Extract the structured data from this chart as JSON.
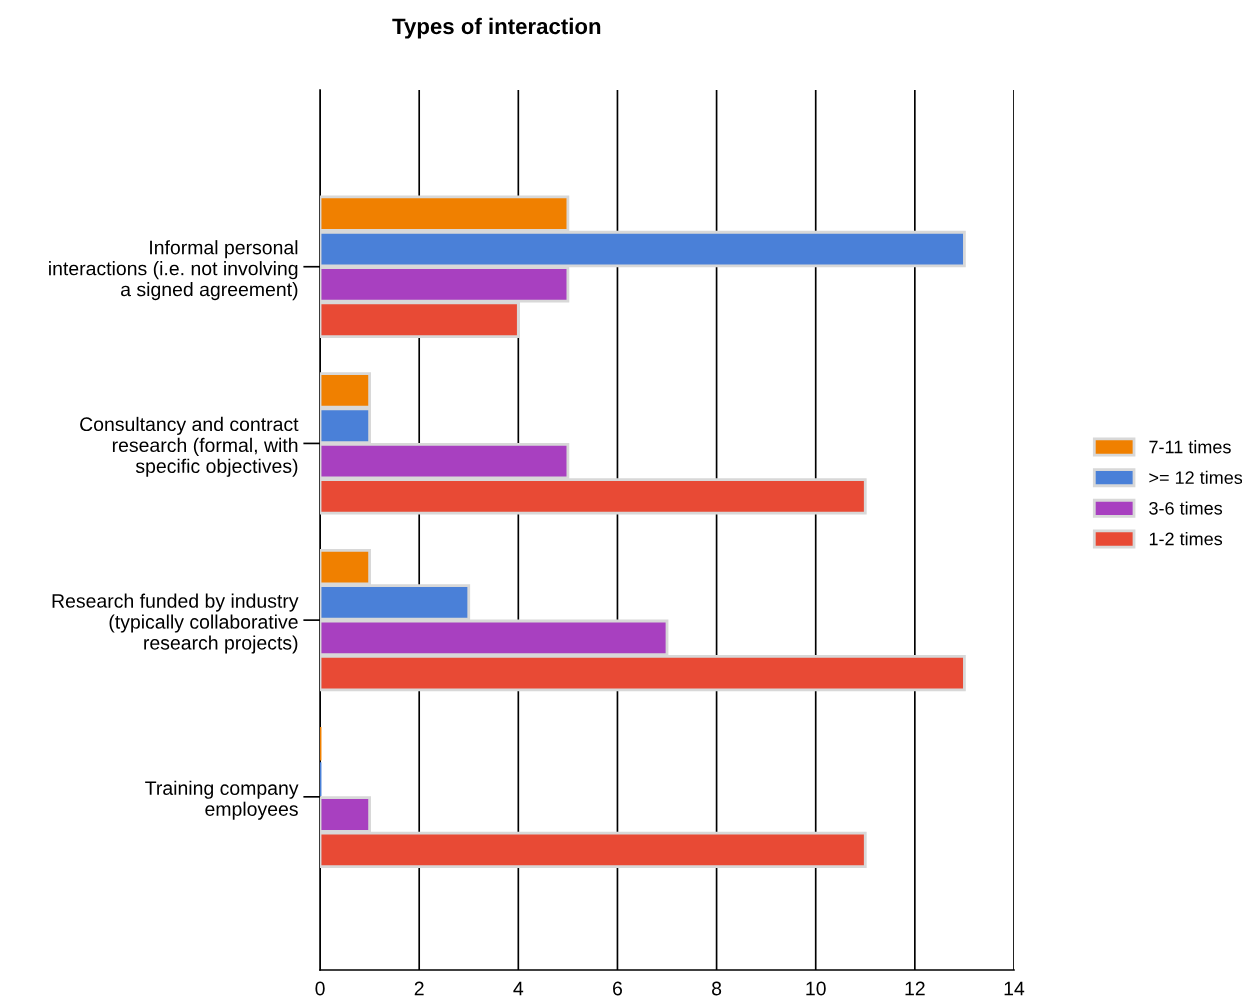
{
  "chart_data": {
    "type": "bar",
    "orientation": "horizontal",
    "title": "Types of interaction",
    "categories": [
      "Informal personal\ninteractions (i.e. not involving\na signed agreement)",
      "Consultancy and contract\nresearch (formal, with\nspecific objectives)",
      "Research funded by industry\n(typically collaborative\nresearch projects)",
      "Training company\nemployees"
    ],
    "series": [
      {
        "name": "7-11 times",
        "color": "#f08000",
        "values": [
          5,
          1,
          1,
          0
        ]
      },
      {
        "name": ">= 12 times",
        "color": "#4a80d8",
        "values": [
          13,
          1,
          3,
          0
        ]
      },
      {
        "name": "3-6 times",
        "color": "#a840c0",
        "values": [
          5,
          5,
          7,
          1
        ]
      },
      {
        "name": "1-2 times",
        "color": "#e84a35",
        "values": [
          4,
          11,
          13,
          11
        ]
      }
    ],
    "xlim": [
      0,
      14
    ],
    "xticks": [
      0,
      2,
      4,
      6,
      8,
      10,
      12,
      14
    ],
    "grid": "x",
    "legend": "right"
  }
}
